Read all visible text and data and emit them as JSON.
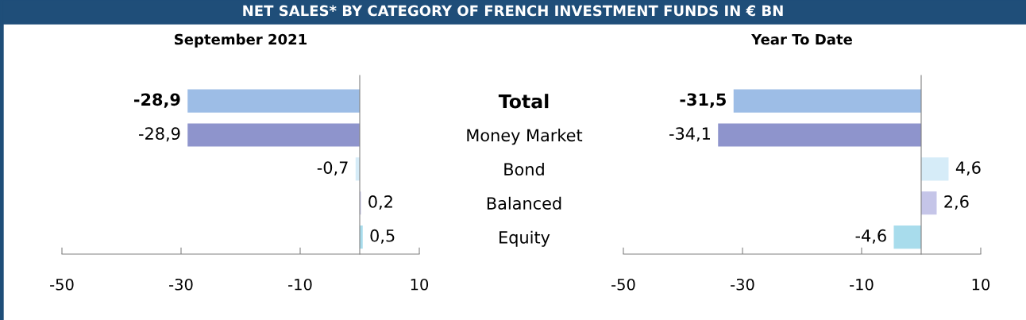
{
  "chart_data": [
    {
      "type": "bar",
      "orientation": "horizontal",
      "title": "NET SALES* BY CATEGORY OF FRENCH INVESTMENT FUNDS IN € BN",
      "subtitle": "September 2021",
      "categories": [
        "Total",
        "Money Market",
        "Bond",
        "Balanced",
        "Equity"
      ],
      "values": [
        -28.9,
        -28.9,
        -0.7,
        0.2,
        0.5
      ],
      "colors": [
        "#9dbde6",
        "#8e94cc",
        "#d6ecf8",
        "#c5c5e8",
        "#a8dcec"
      ],
      "value_labels": [
        "-28,9",
        "-28,9",
        "-0,7",
        "0,2",
        "0,5"
      ],
      "xlim": [
        -50,
        10
      ],
      "xticks": [
        -50,
        -30,
        -10,
        10
      ],
      "grid": false,
      "legend": false
    },
    {
      "type": "bar",
      "orientation": "horizontal",
      "subtitle": "Year To Date",
      "values": [
        -31.5,
        -34.1,
        4.6,
        2.6,
        -4.6
      ],
      "colors": [
        "#9dbde6",
        "#8e94cc",
        "#d6ecf8",
        "#c5c5e8",
        "#a8dcec"
      ],
      "value_labels": [
        "-31,5",
        "-34,1",
        "4,6",
        "2,6",
        "-4,6"
      ],
      "xlim": [
        -50,
        10
      ],
      "xticks": [
        -50,
        -30,
        -10,
        10
      ],
      "tick_labels": "x",
      "grid": false,
      "legend": false
    }
  ]
}
